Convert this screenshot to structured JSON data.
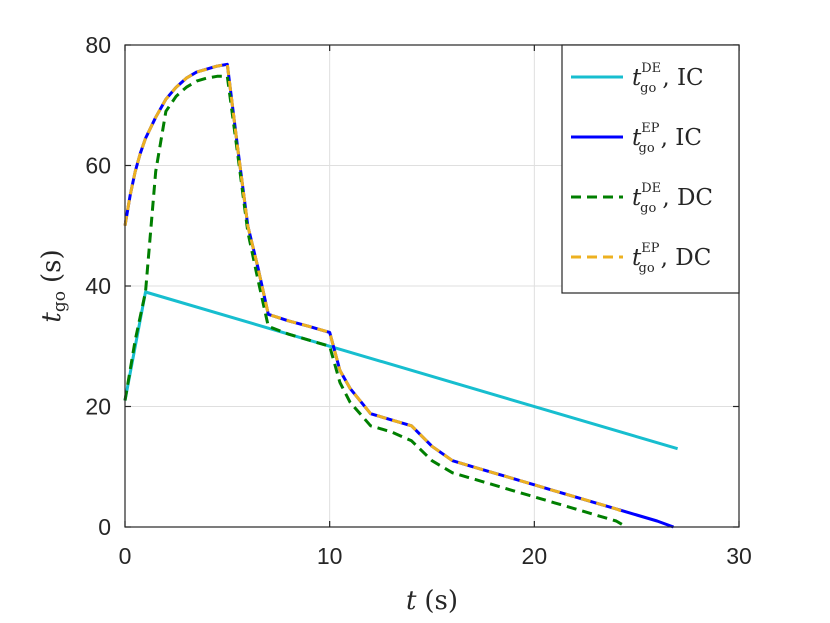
{
  "chart_data": {
    "type": "line",
    "xlabel": {
      "var": "t",
      "unit": "(s)"
    },
    "ylabel": {
      "var": "t",
      "sub": "go",
      "unit": "(s)"
    },
    "xlim": [
      0,
      30
    ],
    "ylim": [
      0,
      80
    ],
    "xticks": [
      0,
      10,
      20,
      30
    ],
    "yticks": [
      0,
      20,
      40,
      60,
      80
    ],
    "grid": true,
    "legend_position": "top-right",
    "series": [
      {
        "name": "t_go^DE, IC",
        "legend": {
          "var": "t",
          "sub": "go",
          "sup": "DE",
          "suffix": ", IC"
        },
        "color": "#17BECF",
        "dash": "solid",
        "x": [
          0,
          1,
          27
        ],
        "y": [
          21,
          39,
          13
        ]
      },
      {
        "name": "t_go^EP, IC",
        "legend": {
          "var": "t",
          "sub": "go",
          "sup": "EP",
          "suffix": ", IC"
        },
        "color": "#0000FF",
        "dash": "solid",
        "x": [
          0,
          0.25,
          0.5,
          0.75,
          1,
          1.5,
          2,
          2.5,
          3,
          3.5,
          4,
          4.5,
          5,
          5.5,
          6,
          6.5,
          7,
          8,
          9,
          10,
          10.5,
          11,
          12,
          13,
          14,
          15,
          16,
          17,
          18,
          19,
          20,
          21,
          22,
          23,
          24,
          25,
          26,
          26.8
        ],
        "y": [
          50,
          55,
          59,
          62,
          64.5,
          68,
          71,
          73,
          74.5,
          75.5,
          76,
          76.5,
          76.8,
          63,
          50,
          43,
          35.3,
          34.2,
          33.3,
          32.3,
          26,
          23,
          18.8,
          17.8,
          16.8,
          13.4,
          11,
          10,
          9,
          8,
          7,
          6,
          5,
          4,
          3,
          2,
          1,
          0
        ]
      },
      {
        "name": "t_go^DE, DC",
        "legend": {
          "var": "t",
          "sub": "go",
          "sup": "DE",
          "suffix": ", DC"
        },
        "color": "#007F00",
        "dash": "dashed",
        "x": [
          0,
          0.5,
          1,
          1.5,
          2,
          2.5,
          3,
          3.5,
          4,
          4.5,
          5,
          5.5,
          6,
          6.5,
          7,
          8,
          9,
          10,
          10.5,
          11,
          12,
          13,
          14,
          15,
          16,
          17,
          18,
          19,
          20,
          21,
          22,
          23,
          24,
          24.5
        ],
        "y": [
          21,
          31,
          39,
          59,
          69,
          71.5,
          73,
          74,
          74.5,
          74.8,
          74.8,
          62,
          49,
          41,
          33.3,
          32,
          31,
          30,
          24,
          20.7,
          16.8,
          15.8,
          14.3,
          11,
          9,
          8,
          7,
          6,
          5,
          4,
          3,
          2,
          1,
          0
        ]
      },
      {
        "name": "t_go^EP, DC",
        "legend": {
          "var": "t",
          "sub": "go",
          "sup": "EP",
          "suffix": ", DC"
        },
        "color": "#EDB120",
        "dash": "dashed",
        "x": [
          0,
          0.25,
          0.5,
          0.75,
          1,
          1.5,
          2,
          2.5,
          3,
          3.5,
          4,
          4.5,
          5,
          5.5,
          6,
          6.5,
          7,
          8,
          9,
          10,
          10.5,
          11,
          12,
          13,
          14,
          15,
          16,
          17,
          18,
          19,
          20,
          21,
          22,
          23,
          24,
          24.5
        ],
        "y": [
          50,
          55,
          59,
          62,
          64.5,
          68,
          71,
          73,
          74.5,
          75.5,
          76,
          76.5,
          76.8,
          63,
          50,
          43,
          35.3,
          34.2,
          33.3,
          32.3,
          26,
          23,
          18.8,
          17.8,
          16.8,
          13.4,
          11,
          10,
          9,
          8,
          7,
          6,
          5,
          4,
          3,
          2.3
        ]
      }
    ]
  }
}
